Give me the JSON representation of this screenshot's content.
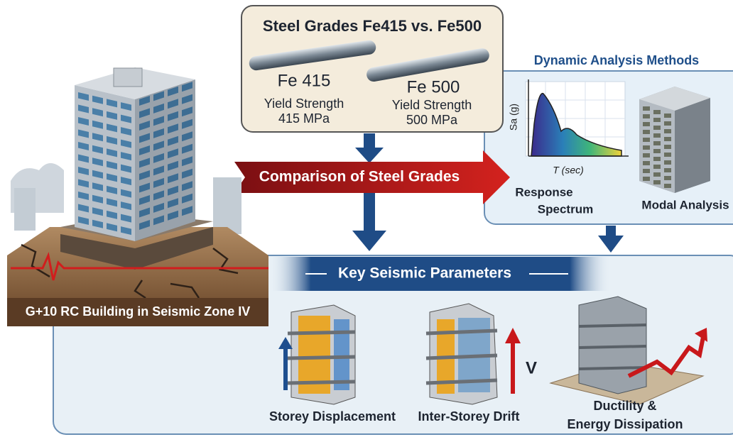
{
  "steel_panel": {
    "title": "Steel Grades Fe415 vs. Fe500",
    "grades": [
      {
        "name": "Fe 415",
        "property": "Yield Strength",
        "value": "415 MPa"
      },
      {
        "name": "Fe 500",
        "property": "Yield Strength",
        "value": "500 MPa"
      }
    ]
  },
  "comparison_arrow": {
    "label": "Comparison of Steel Grades"
  },
  "dynamic_panel": {
    "title": "Dynamic Analysis Methods",
    "spectrum": {
      "y_label": "Sa (g)",
      "x_label": "T (sec)",
      "caption": [
        "Response",
        "Spectrum"
      ]
    },
    "modal": {
      "caption": "Modal Analysis"
    }
  },
  "building": {
    "caption": "G+10 RC Building in Seismic Zone IV"
  },
  "parameters": {
    "title": "Key Seismic Parameters",
    "items": [
      {
        "caption": [
          "Storey Displacement"
        ]
      },
      {
        "caption": [
          "Inter-Storey Drift"
        ],
        "symbol": "V"
      },
      {
        "caption": [
          "Ductility &",
          "Energy Dissipation"
        ]
      }
    ]
  }
}
